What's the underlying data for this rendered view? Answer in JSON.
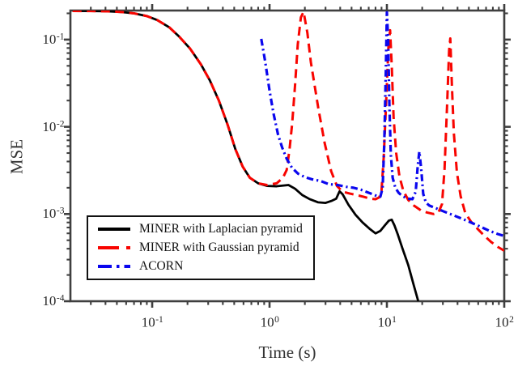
{
  "figure": {
    "background": "#ffffff",
    "axis_color": "#3f3f3f",
    "tick_text_color": "#262626",
    "label_text_color": "#333333"
  },
  "chart_data": {
    "type": "line",
    "title": "",
    "xlabel": "Time (s)",
    "ylabel": "MSE",
    "xscale": "log",
    "yscale": "log",
    "grid": false,
    "legend_position": "lower left",
    "xlim": [
      0.0201,
      100
    ],
    "ylim": [
      0.0001,
      0.2154
    ],
    "tick_label_base": "10",
    "x_tick_exponents": [
      -1,
      0,
      1,
      2
    ],
    "y_tick_exponents": [
      -1,
      -2,
      -3,
      -4
    ],
    "series": [
      {
        "name": "MINER with Laplacian pyramid",
        "color": "#000000",
        "style": "solid",
        "points": [
          [
            0.021,
            0.213
          ],
          [
            0.03,
            0.2125
          ],
          [
            0.042,
            0.211
          ],
          [
            0.055,
            0.207
          ],
          [
            0.07,
            0.2
          ],
          [
            0.09,
            0.186
          ],
          [
            0.11,
            0.168
          ],
          [
            0.14,
            0.138
          ],
          [
            0.17,
            0.108
          ],
          [
            0.21,
            0.079
          ],
          [
            0.26,
            0.052
          ],
          [
            0.31,
            0.034
          ],
          [
            0.37,
            0.02
          ],
          [
            0.44,
            0.0105
          ],
          [
            0.51,
            0.0056
          ],
          [
            0.59,
            0.0035
          ],
          [
            0.68,
            0.0026
          ],
          [
            0.8,
            0.00225
          ],
          [
            0.95,
            0.0021
          ],
          [
            1.15,
            0.00208
          ],
          [
            1.45,
            0.00215
          ],
          [
            1.65,
            0.00195
          ],
          [
            1.9,
            0.00165
          ],
          [
            2.2,
            0.00148
          ],
          [
            2.6,
            0.00136
          ],
          [
            3.0,
            0.00134
          ],
          [
            3.4,
            0.00142
          ],
          [
            3.7,
            0.0015
          ],
          [
            3.95,
            0.00182
          ],
          [
            4.2,
            0.00168
          ],
          [
            4.7,
            0.00128
          ],
          [
            5.4,
            0.00098
          ],
          [
            6.2,
            0.0008
          ],
          [
            7.1,
            0.00068
          ],
          [
            8.0,
            0.0006
          ],
          [
            8.8,
            0.00064
          ],
          [
            9.6,
            0.00074
          ],
          [
            10.4,
            0.00084
          ],
          [
            11.0,
            0.00086
          ],
          [
            11.6,
            0.00074
          ],
          [
            12.4,
            0.00058
          ],
          [
            13.6,
            0.0004
          ],
          [
            15.2,
            0.00026
          ],
          [
            17.0,
            0.00015
          ],
          [
            18.5,
            0.0001
          ]
        ]
      },
      {
        "name": "MINER with Gaussian pyramid",
        "color": "#f80400",
        "style": "dashed",
        "points": [
          [
            0.021,
            0.213
          ],
          [
            0.03,
            0.2125
          ],
          [
            0.042,
            0.211
          ],
          [
            0.055,
            0.207
          ],
          [
            0.07,
            0.2
          ],
          [
            0.09,
            0.186
          ],
          [
            0.11,
            0.168
          ],
          [
            0.14,
            0.138
          ],
          [
            0.17,
            0.108
          ],
          [
            0.21,
            0.079
          ],
          [
            0.26,
            0.052
          ],
          [
            0.31,
            0.034
          ],
          [
            0.37,
            0.02
          ],
          [
            0.44,
            0.0105
          ],
          [
            0.51,
            0.0056
          ],
          [
            0.59,
            0.0035
          ],
          [
            0.68,
            0.0026
          ],
          [
            0.8,
            0.00225
          ],
          [
            0.95,
            0.00215
          ],
          [
            1.15,
            0.00225
          ],
          [
            1.3,
            0.0026
          ],
          [
            1.4,
            0.0032
          ],
          [
            1.48,
            0.0055
          ],
          [
            1.56,
            0.011
          ],
          [
            1.65,
            0.03
          ],
          [
            1.74,
            0.088
          ],
          [
            1.85,
            0.18
          ],
          [
            1.95,
            0.208
          ],
          [
            2.1,
            0.12
          ],
          [
            2.25,
            0.055
          ],
          [
            2.6,
            0.0165
          ],
          [
            2.95,
            0.0065
          ],
          [
            3.35,
            0.0031
          ],
          [
            3.75,
            0.0021
          ],
          [
            4.2,
            0.0018
          ],
          [
            4.8,
            0.00172
          ],
          [
            5.5,
            0.00165
          ],
          [
            6.3,
            0.00158
          ],
          [
            7.2,
            0.0015
          ],
          [
            8.0,
            0.00148
          ],
          [
            8.6,
            0.00155
          ],
          [
            9.0,
            0.00185
          ],
          [
            9.4,
            0.0045
          ],
          [
            9.9,
            0.022
          ],
          [
            10.3,
            0.08
          ],
          [
            10.65,
            0.128
          ],
          [
            11.0,
            0.05
          ],
          [
            11.4,
            0.013
          ],
          [
            12.0,
            0.005
          ],
          [
            12.8,
            0.0027
          ],
          [
            13.8,
            0.00185
          ],
          [
            15.2,
            0.00145
          ],
          [
            17,
            0.00125
          ],
          [
            19.5,
            0.0011
          ],
          [
            22,
            0.00104
          ],
          [
            25,
            0.001
          ],
          [
            27.5,
            0.00104
          ],
          [
            29.5,
            0.0013
          ],
          [
            31,
            0.0033
          ],
          [
            32.6,
            0.018
          ],
          [
            33.9,
            0.075
          ],
          [
            34.7,
            0.103
          ],
          [
            35.8,
            0.03
          ],
          [
            37.2,
            0.0085
          ],
          [
            39.5,
            0.003
          ],
          [
            42.5,
            0.0016
          ],
          [
            46.5,
            0.00103
          ],
          [
            52,
            0.00082
          ],
          [
            59,
            0.00068
          ],
          [
            67,
            0.00057
          ],
          [
            77,
            0.00048
          ],
          [
            88,
            0.00042
          ],
          [
            100,
            0.00038
          ]
        ]
      },
      {
        "name": "ACORN",
        "color": "#0a06ee",
        "style": "dashdot",
        "points": [
          [
            0.85,
            0.102
          ],
          [
            0.92,
            0.055
          ],
          [
            1.0,
            0.026
          ],
          [
            1.08,
            0.0143
          ],
          [
            1.18,
            0.0082
          ],
          [
            1.28,
            0.0058
          ],
          [
            1.4,
            0.0043
          ],
          [
            1.55,
            0.0034
          ],
          [
            1.75,
            0.0029
          ],
          [
            2.0,
            0.00265
          ],
          [
            2.3,
            0.0025
          ],
          [
            2.7,
            0.0024
          ],
          [
            3.2,
            0.0022
          ],
          [
            3.8,
            0.00215
          ],
          [
            4.5,
            0.00205
          ],
          [
            5.2,
            0.002
          ],
          [
            6.0,
            0.0019
          ],
          [
            6.8,
            0.00178
          ],
          [
            7.6,
            0.00168
          ],
          [
            8.3,
            0.0016
          ],
          [
            8.8,
            0.00158
          ],
          [
            9.2,
            0.002
          ],
          [
            9.5,
            0.0065
          ],
          [
            9.8,
            0.045
          ],
          [
            10.0,
            0.205
          ],
          [
            10.25,
            0.1
          ],
          [
            10.5,
            0.018
          ],
          [
            10.8,
            0.0048
          ],
          [
            11.2,
            0.0026
          ],
          [
            11.8,
            0.002
          ],
          [
            12.6,
            0.00175
          ],
          [
            13.6,
            0.0016
          ],
          [
            15.0,
            0.0015
          ],
          [
            16.5,
            0.00148
          ],
          [
            17.6,
            0.0018
          ],
          [
            18.3,
            0.0035
          ],
          [
            18.9,
            0.0052
          ],
          [
            19.6,
            0.0033
          ],
          [
            20.4,
            0.0017
          ],
          [
            21.5,
            0.00135
          ],
          [
            23,
            0.00125
          ],
          [
            26,
            0.00117
          ],
          [
            30,
            0.00108
          ],
          [
            36,
            0.00098
          ],
          [
            43,
            0.00089
          ],
          [
            52,
            0.0008
          ],
          [
            62,
            0.00072
          ],
          [
            75,
            0.00064
          ],
          [
            88,
            0.00059
          ],
          [
            100,
            0.00056
          ]
        ]
      }
    ]
  }
}
